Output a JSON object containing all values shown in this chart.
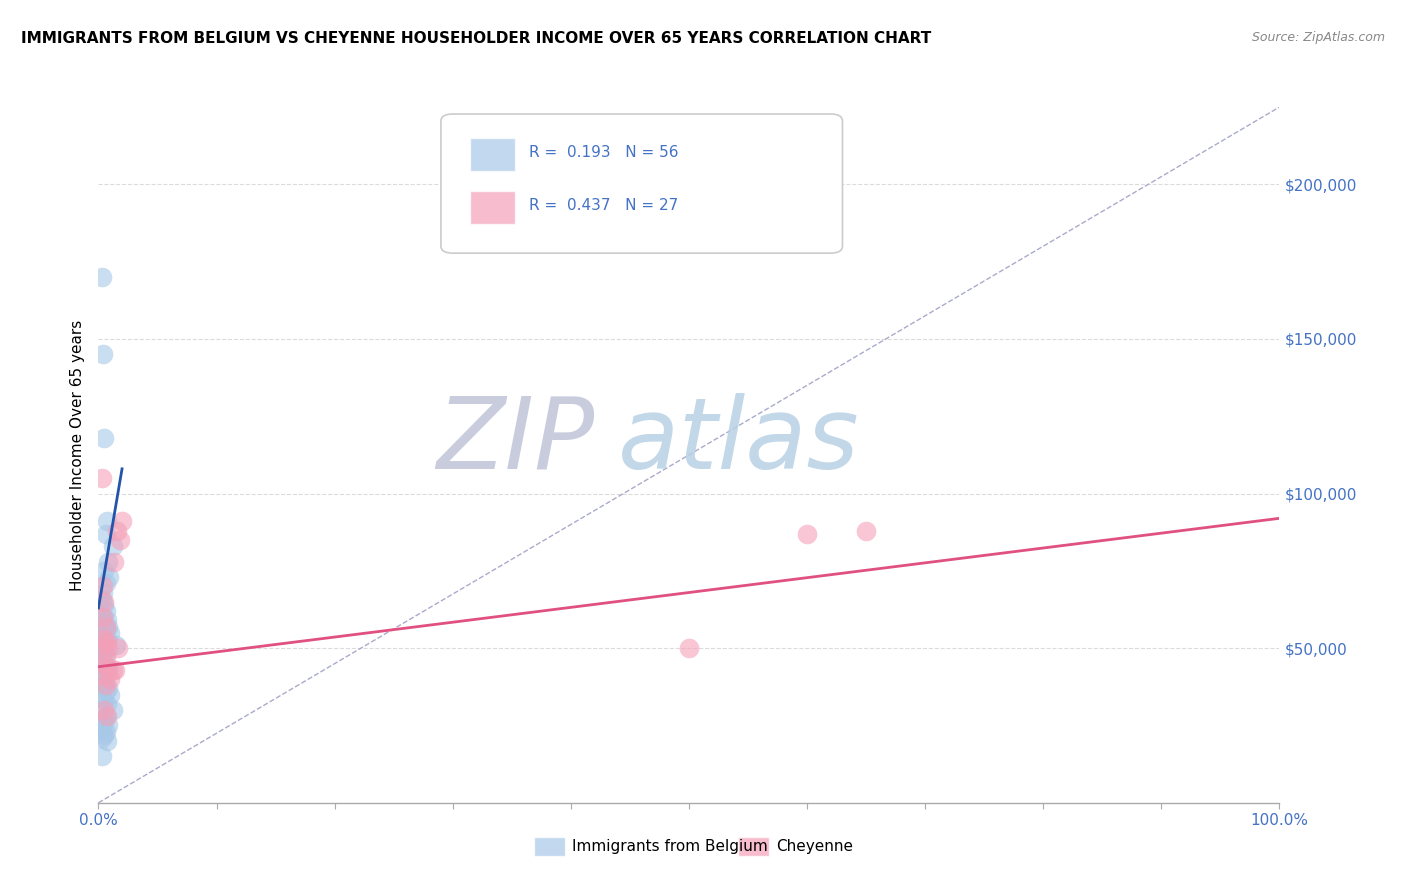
{
  "title": "IMMIGRANTS FROM BELGIUM VS CHEYENNE HOUSEHOLDER INCOME OVER 65 YEARS CORRELATION CHART",
  "source": "Source: ZipAtlas.com",
  "ylabel": "Householder Income Over 65 years",
  "legend_blue_label": "Immigrants from Belgium",
  "legend_pink_label": "Cheyenne",
  "legend_blue_R": "R =  0.193",
  "legend_blue_N": "N = 56",
  "legend_pink_R": "R =  0.437",
  "legend_pink_N": "N = 27",
  "blue_color": "#a8c8e8",
  "pink_color": "#f4a0b8",
  "blue_line_color": "#2255aa",
  "pink_line_color": "#e05080",
  "dashed_line_color": "#aaaacc",
  "watermark_zip_color": "#c8cce0",
  "watermark_atlas_color": "#c8d8e8",
  "background_color": "#ffffff",
  "ytick_labels": [
    "$50,000",
    "$100,000",
    "$150,000",
    "$200,000"
  ],
  "ytick_values": [
    50000,
    100000,
    150000,
    200000
  ],
  "ymin": 0,
  "ymax": 225000,
  "xmin": 0.0,
  "xmax": 100.0,
  "blue_scatter_x": [
    0.3,
    0.4,
    0.5,
    0.6,
    0.7,
    0.8,
    0.9,
    0.5,
    0.6,
    0.4,
    0.3,
    0.5,
    0.6,
    0.4,
    0.7,
    0.5,
    0.8,
    0.6,
    0.4,
    1.0,
    0.5,
    0.7,
    0.6,
    1.5,
    1.2,
    0.3,
    0.5,
    0.6,
    0.3,
    0.4,
    0.5,
    0.7,
    0.8,
    0.5,
    0.4,
    0.6,
    0.3,
    0.5,
    0.4,
    0.8,
    0.6,
    1.0,
    0.3,
    0.5,
    0.7,
    1.2,
    0.6,
    0.4,
    0.5,
    0.8,
    0.3,
    0.6,
    0.5,
    0.3,
    0.7,
    0.3
  ],
  "blue_scatter_y": [
    170000,
    145000,
    118000,
    87000,
    91000,
    78000,
    73000,
    75000,
    71000,
    68000,
    66000,
    64000,
    62000,
    60000,
    59000,
    58000,
    57000,
    56000,
    55000,
    55000,
    54000,
    53000,
    52000,
    51000,
    83000,
    50000,
    49000,
    48000,
    47000,
    46000,
    45000,
    44000,
    43000,
    42000,
    42000,
    41000,
    40000,
    39000,
    38000,
    37000,
    36000,
    35000,
    34000,
    33000,
    32000,
    30000,
    28000,
    27000,
    26000,
    25000,
    24000,
    23000,
    22000,
    21000,
    20000,
    15000
  ],
  "pink_scatter_x": [
    0.3,
    0.4,
    0.5,
    0.4,
    0.6,
    0.5,
    0.7,
    0.4,
    0.8,
    0.6,
    0.5,
    0.7,
    1.2,
    1.4,
    1.3,
    0.5,
    1.6,
    1.8,
    2.0,
    1.7,
    0.5,
    0.7,
    50.0,
    60.0,
    65.0,
    1.0,
    0.6
  ],
  "pink_scatter_y": [
    105000,
    70000,
    65000,
    60000,
    57000,
    53000,
    52000,
    51000,
    50000,
    47000,
    45000,
    44000,
    43000,
    43000,
    78000,
    41000,
    88000,
    85000,
    91000,
    50000,
    30000,
    28000,
    50000,
    87000,
    88000,
    40000,
    38000
  ],
  "blue_line_x": [
    0.0,
    2.0
  ],
  "blue_line_y": [
    63000,
    108000
  ],
  "pink_line_x": [
    0.0,
    100.0
  ],
  "pink_line_y": [
    44000,
    92000
  ],
  "dashed_line_x": [
    0.0,
    100.0
  ],
  "dashed_line_y": [
    0,
    225000
  ]
}
